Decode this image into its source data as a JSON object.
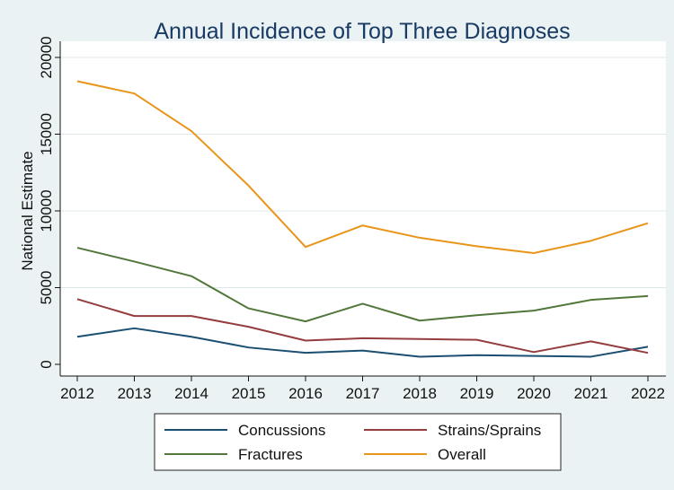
{
  "chart_data": {
    "type": "line",
    "title": "Annual Incidence of Top Three Diagnoses",
    "xlabel": "",
    "ylabel": "National Estimate",
    "x": [
      2012,
      2013,
      2014,
      2015,
      2016,
      2017,
      2018,
      2019,
      2020,
      2021,
      2022
    ],
    "yticks": [
      0,
      5000,
      10000,
      15000,
      20000
    ],
    "ylim": [
      0,
      20000
    ],
    "grid": true,
    "legend_position": "bottom",
    "series": [
      {
        "name": "Concussions",
        "color": "#1b4f72",
        "values": [
          1800,
          2350,
          1800,
          1100,
          750,
          900,
          500,
          600,
          550,
          500,
          1150
        ]
      },
      {
        "name": "Strains/Sprains",
        "color": "#943d3e",
        "values": [
          4250,
          3150,
          3150,
          2450,
          1550,
          1700,
          1650,
          1600,
          800,
          1500,
          750
        ]
      },
      {
        "name": "Fractures",
        "color": "#52773a",
        "values": [
          7600,
          6700,
          5750,
          3650,
          2800,
          3950,
          2850,
          3200,
          3500,
          4200,
          4450
        ]
      },
      {
        "name": "Overall",
        "color": "#e8951a",
        "values": [
          18450,
          17650,
          15200,
          11650,
          7650,
          9050,
          8250,
          7700,
          7250,
          8050,
          9200
        ]
      }
    ]
  }
}
